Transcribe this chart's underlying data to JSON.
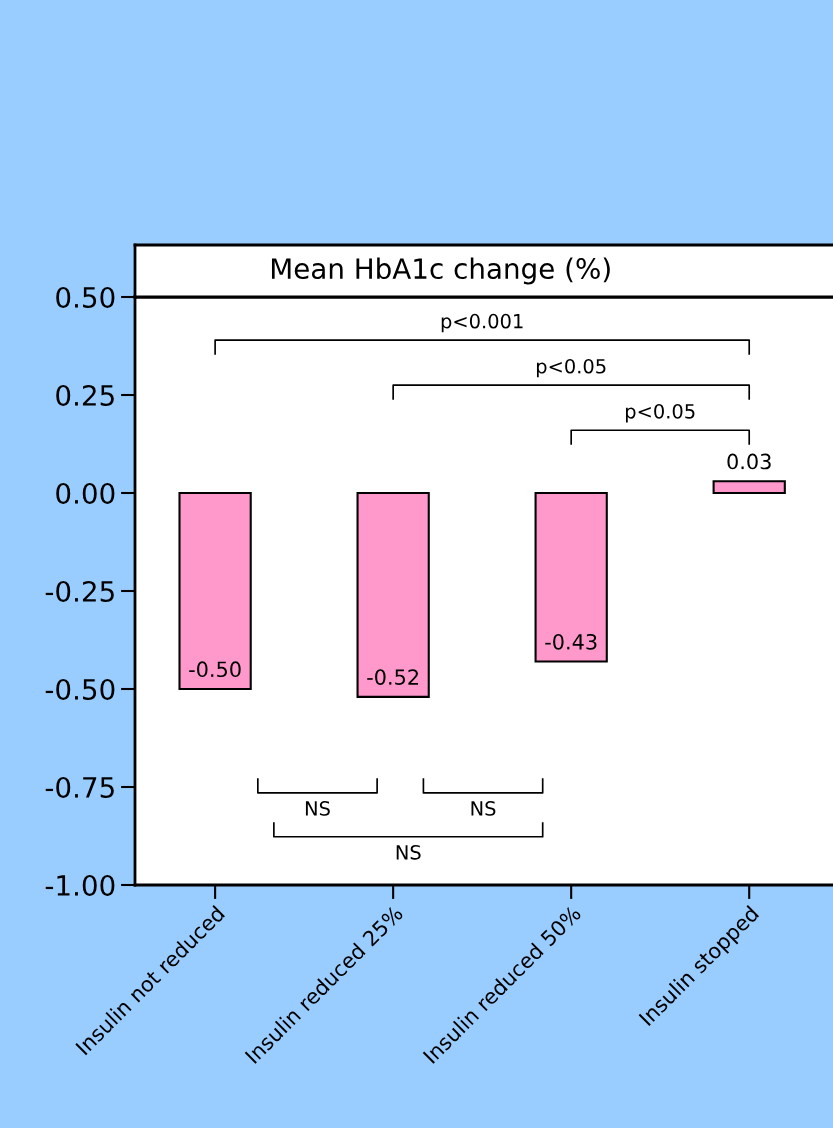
{
  "chart_data": {
    "type": "bar",
    "title": "Mean HbA1c change (%)",
    "categories": [
      "Insulin not reduced",
      "Insulin reduced 25%",
      "Insulin reduced 50%",
      "Insulin stopped"
    ],
    "values": [
      -0.5,
      -0.52,
      -0.43,
      0.03
    ],
    "color": "#ff99cc",
    "ylim": [
      -1.0,
      0.5
    ],
    "yticks": [
      {
        "value": 0.5,
        "label": "0.50"
      },
      {
        "value": 0.25,
        "label": "0.25"
      },
      {
        "value": 0,
        "label": "0.00"
      },
      {
        "value": -0.25,
        "label": "-0.25"
      },
      {
        "value": -0.5,
        "label": "-0.50"
      },
      {
        "value": -0.75,
        "label": "-0.75"
      },
      {
        "value": -1.0,
        "label": "-1.00"
      }
    ],
    "value_labels": [
      "-0.50",
      "-0.52",
      "-0.43",
      "0.03"
    ],
    "grid": false,
    "legend": false,
    "annotations": [
      "p<0.001",
      "p<0.05",
      "p<0.05",
      "NS",
      "NS",
      "NS"
    ]
  }
}
